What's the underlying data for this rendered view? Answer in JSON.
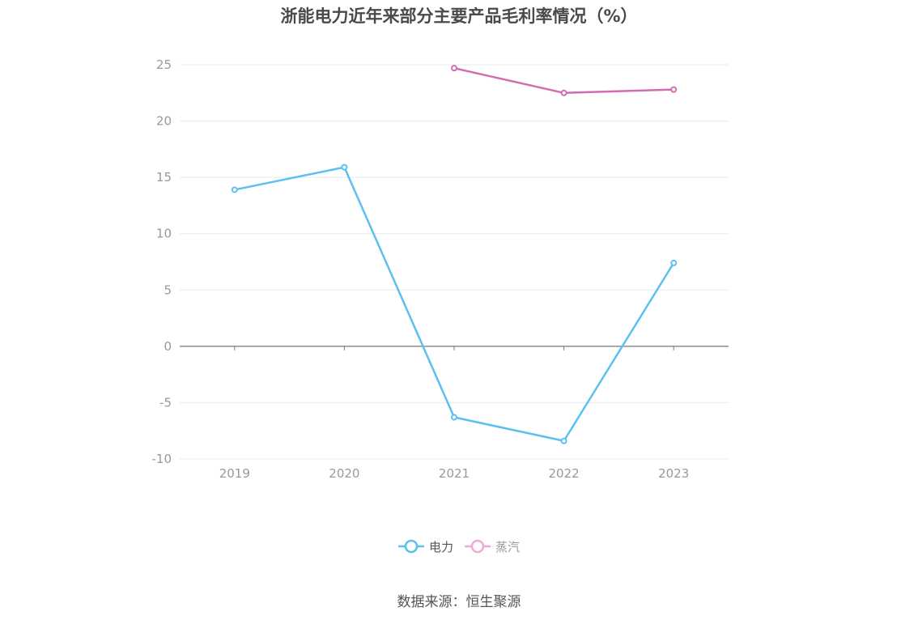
{
  "chart_data": {
    "type": "line",
    "title": "浙能电力近年来部分主要产品毛利率情况（%）",
    "categories": [
      "2019",
      "2020",
      "2021",
      "2022",
      "2023"
    ],
    "ylim": [
      -10,
      25
    ],
    "yticks": [
      25,
      20,
      15,
      10,
      5,
      0,
      -5,
      -10
    ],
    "grid": true,
    "legend_position": "bottom-center",
    "series": [
      {
        "name": "电力",
        "color": "#5bc0f0",
        "values": [
          13.9,
          15.9,
          -6.3,
          -8.4,
          7.4
        ]
      },
      {
        "name": "蒸汽",
        "color": "#d36bb4",
        "values": [
          null,
          null,
          24.7,
          22.5,
          22.8
        ]
      }
    ]
  },
  "source": "数据来源：恒生聚源"
}
